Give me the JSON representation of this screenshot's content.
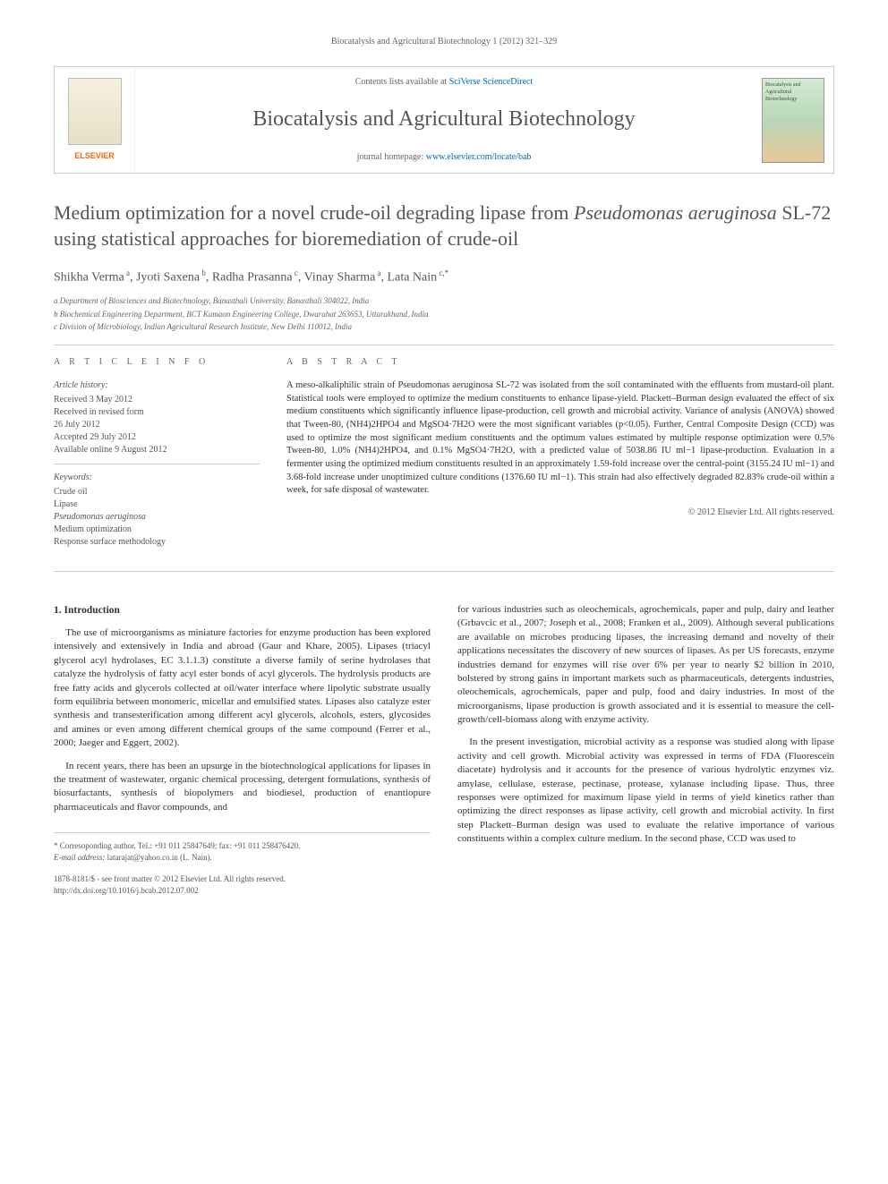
{
  "header": {
    "citation": "Biocatalysis and Agricultural Biotechnology 1 (2012) 321–329"
  },
  "banner": {
    "contents_prefix": "Contents lists available at ",
    "contents_link": "SciVerse ScienceDirect",
    "journal_name": "Biocatalysis and Agricultural Biotechnology",
    "homepage_prefix": "journal homepage: ",
    "homepage_link": "www.elsevier.com/locate/bab",
    "publisher": "ELSEVIER",
    "cover_text": "Biocatalysis and Agricultural Biotechnology"
  },
  "article": {
    "title_part1": "Medium optimization for a novel crude-oil degrading lipase from ",
    "title_italic": "Pseudomonas aeruginosa",
    "title_part2": " SL-72 using statistical approaches for bioremediation of crude-oil",
    "authors_html": "Shikha Verma<sup> a</sup>, Jyoti Saxena<sup> b</sup>, Radha Prasanna<sup> c</sup>, Vinay Sharma<sup> a</sup>, Lata Nain<sup> c,*</sup>",
    "affiliations": [
      "a Department of Biosciences and Biotechnology, Banasthali University, Banasthali 304022, India",
      "b Biochemical Engineering Department, BCT Kumaon Engineering College, Dwarahat 263653, Uttarakhand, India",
      "c Division of Microbiology, Indian Agricultural Research Institute, New Delhi 110012, India"
    ]
  },
  "info": {
    "heading": "A R T I C L E  I N F O",
    "history_label": "Article history:",
    "history": [
      "Received 3 May 2012",
      "Received in revised form",
      "26 July 2012",
      "Accepted 29 July 2012",
      "Available online 9 August 2012"
    ],
    "keywords_label": "Keywords:",
    "keywords": [
      "Crude oil",
      "Lipase",
      "Pseudomonas aeruginosa",
      "Medium optimization",
      "Response surface methodology"
    ]
  },
  "abstract": {
    "heading": "A B S T R A C T",
    "text": "A meso-alkaliphilic strain of Pseudomonas aeruginosa SL-72 was isolated from the soil contaminated with the effluents from mustard-oil plant. Statistical tools were employed to optimize the medium constituents to enhance lipase-yield. Plackett–Burman design evaluated the effect of six medium constituents which significantly influence lipase-production, cell growth and microbial activity. Variance of analysis (ANOVA) showed that Tween-80, (NH4)2HPO4 and MgSO4·7H2O were the most significant variables (p<0.05). Further, Central Composite Design (CCD) was used to optimize the most significant medium constituents and the optimum values estimated by multiple response optimization were 0.5% Tween-80, 1.0% (NH4)2HPO4, and 0.1% MgSO4·7H2O, with a predicted value of 5038.86 IU ml−1 lipase-production. Evaluation in a fermenter using the optimized medium constituents resulted in an approximately 1.59-fold increase over the central-point (3155.24 IU ml−1) and 3.68-fold increase under unoptimized culture conditions (1376.60 IU ml−1). This strain had also effectively degraded 82.83% crude-oil within a week, for safe disposal of wastewater.",
    "copyright": "© 2012 Elsevier Ltd. All rights reserved."
  },
  "body": {
    "section_heading": "1. Introduction",
    "col1_p1": "The use of microorganisms as miniature factories for enzyme production has been explored intensively and extensively in India and abroad (Gaur and Khare, 2005). Lipases (triacyl glycerol acyl hydrolases, EC 3.1.1.3) constitute a diverse family of serine hydrolases that catalyze the hydrolysis of fatty acyl ester bonds of acyl glycerols. The hydrolysis products are free fatty acids and glycerols collected at oil/water interface where lipolytic substrate usually form equilibria between monomeric, micellar and emulsified states. Lipases also catalyze ester synthesis and transesterification among different acyl glycerols, alcohols, esters, glycosides and amines or even among different chemical groups of the same compound (Ferrer et al., 2000; Jaeger and Eggert, 2002).",
    "col1_p2": "In recent years, there has been an upsurge in the biotechnological applications for lipases in the treatment of wastewater, organic chemical processing, detergent formulations, synthesis of biosurfactants, synthesis of biopolymers and biodiesel, production of enantiopure pharmaceuticals and flavor compounds, and",
    "col2_p1": "for various industries such as oleochemicals, agrochemicals, paper and pulp, dairy and leather (Grbavcic et al., 2007; Joseph et al., 2008; Franken et al., 2009). Although several publications are available on microbes producing lipases, the increasing demand and novelty of their applications necessitates the discovery of new sources of lipases. As per US forecasts, enzyme industries demand for enzymes will rise over 6% per year to nearly $2 billion in 2010, bolstered by strong gains in important markets such as pharmaceuticals, detergents industries, oleochemicals, agrochemicals, paper and pulp, food and dairy industries. In most of the microorganisms, lipase production is growth associated and it is essential to measure the cell-growth/cell-biomass along with enzyme activity.",
    "col2_p2": "In the present investigation, microbial activity as a response was studied along with lipase activity and cell growth. Microbial activity was expressed in terms of FDA (Fluorescein diacetate) hydrolysis and it accounts for the presence of various hydrolytic enzymes viz. amylase, cellulase, esterase, pectinase, protease, xylanase including lipase. Thus, three responses were optimized for maximum lipase yield in terms of yield kinetics rather than optimizing the direct responses as lipase activity, cell growth and microbial activity. In first step Plackett–Burman design was used to evaluate the relative importance of various constituents within a complex culture medium. In the second phase, CCD was used to"
  },
  "footer": {
    "corr_line": "* Corresoponding author. Tel.: +91 011 25847649; fax: +91 011 258476420.",
    "email_label": "E-mail address: ",
    "email": "latarajat@yahoo.co.in (L. Nain).",
    "issn_line": "1878-8181/$ - see front matter © 2012 Elsevier Ltd. All rights reserved.",
    "doi_line": "http://dx.doi.org/10.1016/j.bcab.2012.07.002"
  },
  "colors": {
    "text": "#333333",
    "muted": "#666666",
    "link": "#0066cc",
    "border": "#cccccc",
    "elsevier": "#ff6600"
  }
}
